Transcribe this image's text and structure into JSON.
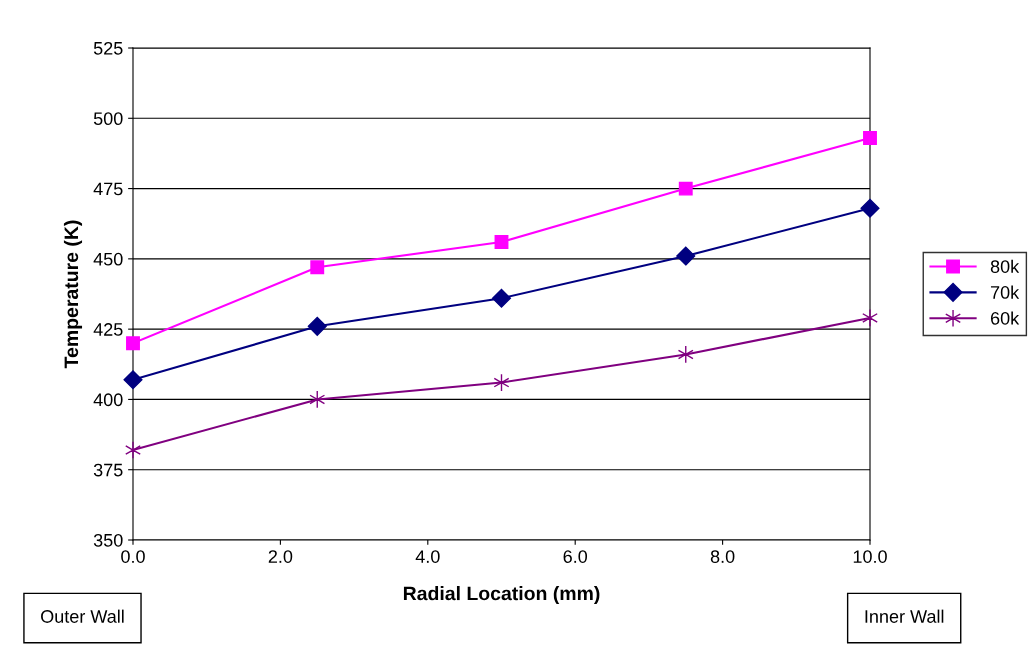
{
  "chart_data": {
    "type": "line",
    "xlabel": "Radial Location (mm)",
    "ylabel": "Temperature (K)",
    "x": [
      0,
      2.5,
      5,
      7.5,
      10
    ],
    "series": [
      {
        "name": "80k",
        "color": "#ff00ff",
        "marker": "square",
        "values": [
          420,
          447,
          456,
          475,
          493
        ]
      },
      {
        "name": "70k",
        "color": "#000080",
        "marker": "diamond",
        "values": [
          407,
          426,
          436,
          451,
          468
        ]
      },
      {
        "name": "60k",
        "color": "#800080",
        "marker": "cross",
        "values": [
          382,
          400,
          406,
          416,
          429
        ]
      }
    ],
    "xlim": [
      0,
      10
    ],
    "xticks": [
      {
        "value": 0,
        "label": "0.0"
      },
      {
        "value": 2,
        "label": "2.0"
      },
      {
        "value": 4,
        "label": "4.0"
      },
      {
        "value": 6,
        "label": "6.0"
      },
      {
        "value": 8,
        "label": "8.0"
      },
      {
        "value": 10,
        "label": "10.0"
      }
    ],
    "ylim": [
      350,
      525
    ],
    "yticks": [
      350,
      375,
      400,
      425,
      450,
      475,
      500,
      525
    ],
    "grid": "y",
    "legend": "right",
    "line_style": "solid",
    "annotations": [
      "Outer Wall",
      "Inner Wall"
    ]
  }
}
